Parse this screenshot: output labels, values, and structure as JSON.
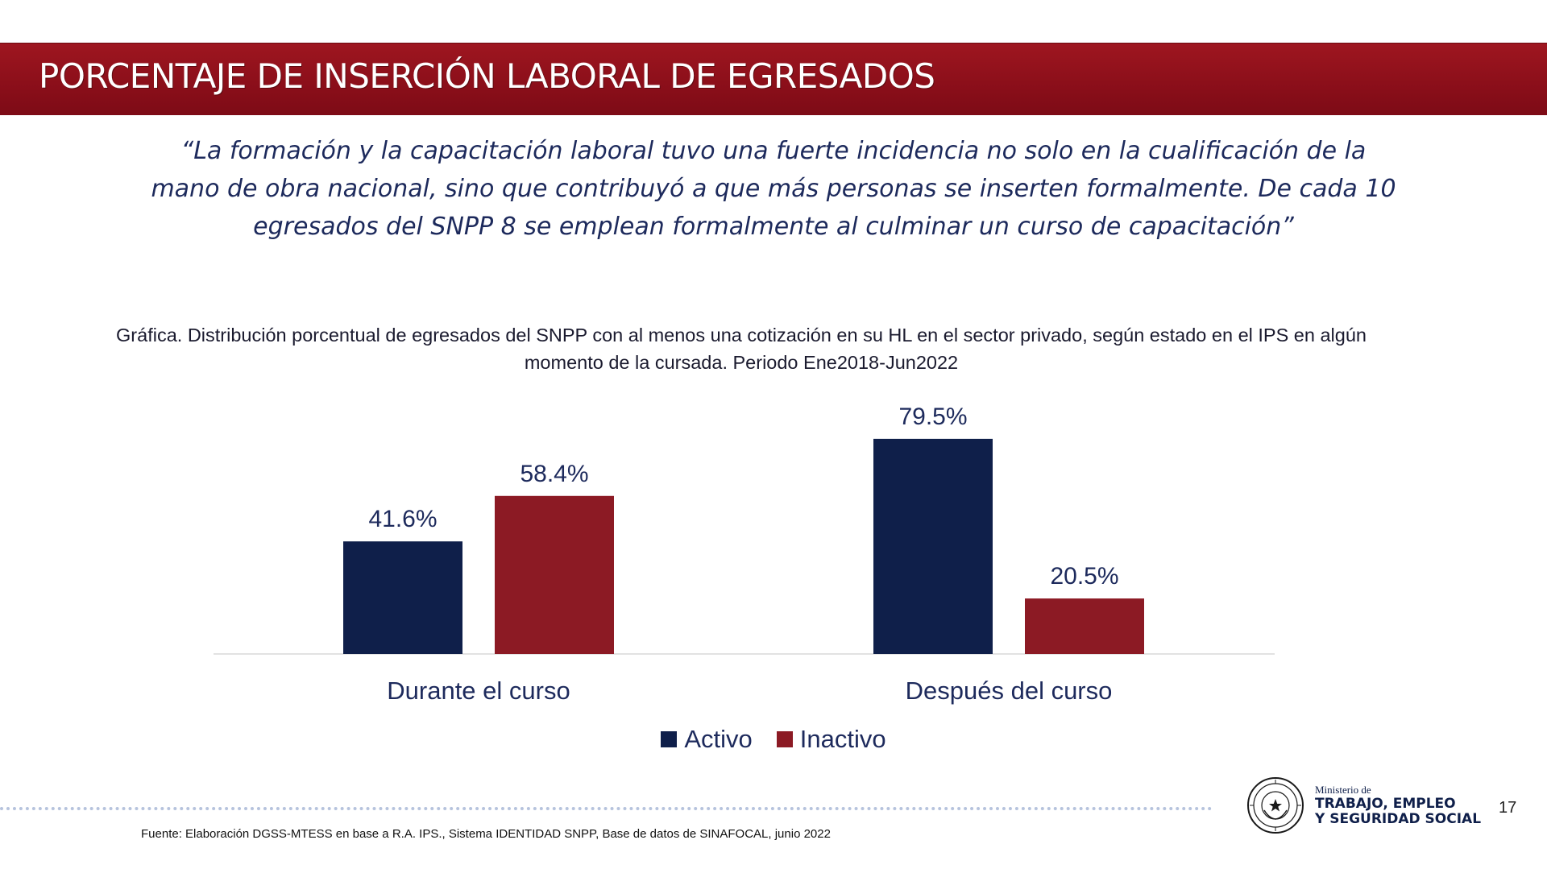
{
  "slide": {
    "title": "PORCENTAJE DE INSERCIÓN LABORAL DE EGRESADOS",
    "quote": "“La formación y la capacitación laboral tuvo una fuerte incidencia no solo en la cualificación de la mano de obra nacional, sino que contribuyó a que más personas se inserten formalmente. De cada 10 egresados del SNPP 8 se emplean formalmente al culminar un curso de capacitación”",
    "chart_caption": "Gráfica. Distribución porcentual de egresados del SNPP con al menos una cotización en su HL en el sector privado, según estado en el IPS en algún momento de la cursada. Periodo Ene2018-Jun2022",
    "source": "Fuente: Elaboración DGSS-MTESS en base a R.A. IPS., Sistema IDENTIDAD SNPP, Base de datos de SINAFOCAL, junio 2022",
    "page_number": "17",
    "logo": {
      "seal_icon": "republica-del-paraguay-seal-icon",
      "line1": "Ministerio de",
      "line2": "TRABAJO, EMPLEO",
      "line3": "Y SEGURIDAD SOCIAL"
    }
  },
  "colors": {
    "title_bar": "#8c0f1a",
    "activo": "#0f1f4a",
    "inactivo": "#8c1a24",
    "text_navy": "#1d2a5c",
    "axis": "#d9d9d9"
  },
  "chart_data": {
    "type": "bar",
    "categories": [
      "Durante el curso",
      "Después del curso"
    ],
    "series": [
      {
        "name": "Activo",
        "values": [
          41.6,
          79.5
        ],
        "color": "#0f1f4a"
      },
      {
        "name": "Inactivo",
        "values": [
          58.4,
          20.5
        ],
        "color": "#8c1a24"
      }
    ],
    "data_labels": [
      [
        "41.6%",
        "79.5%"
      ],
      [
        "58.4%",
        "20.5%"
      ]
    ],
    "unit": "%",
    "ylim": [
      0,
      100
    ],
    "grid": false,
    "y_axis_visible": false,
    "legend_position": "bottom-center"
  }
}
